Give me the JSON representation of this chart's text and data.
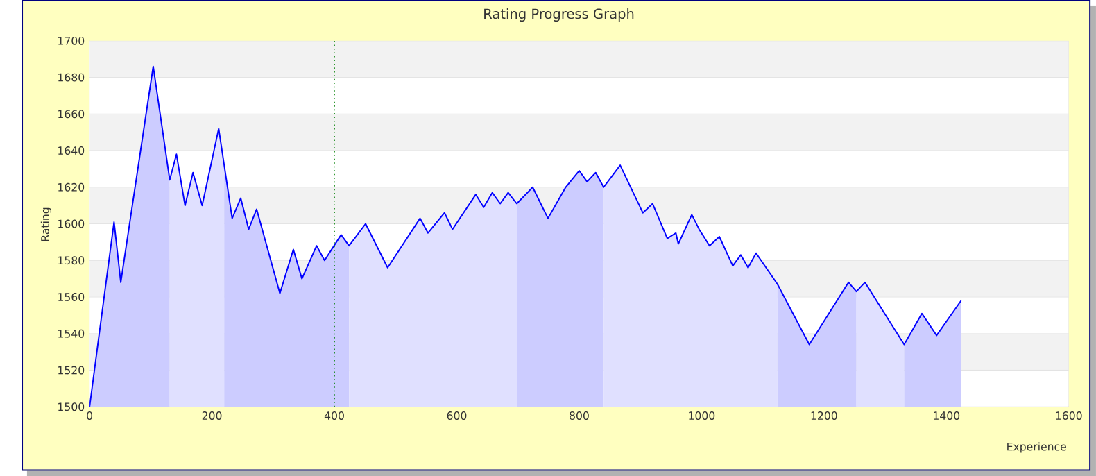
{
  "chart_data": {
    "type": "line",
    "title": "Rating Progress Graph",
    "xlabel": "Experience",
    "ylabel": "Rating",
    "xlim": [
      0,
      1600
    ],
    "ylim": [
      1500,
      1700
    ],
    "xticks": [
      0,
      200,
      400,
      600,
      800,
      1000,
      1200,
      1400,
      1600
    ],
    "yticks": [
      1500,
      1520,
      1540,
      1560,
      1580,
      1600,
      1620,
      1640,
      1660,
      1680,
      1700
    ],
    "grid": "y",
    "marker": "none",
    "line_style": "solid",
    "ref_lines": [
      {
        "axis": "x",
        "value": 400,
        "color": "#008000",
        "line_style": "dotted"
      }
    ],
    "series": [
      {
        "color": "#0000ff",
        "x": [
          0,
          40,
          51,
          104,
          131,
          142,
          156,
          169,
          184,
          211,
          220,
          233,
          247,
          260,
          273,
          311,
          333,
          347,
          371,
          384,
          411,
          424,
          451,
          487,
          540,
          553,
          580,
          593,
          631,
          644,
          658,
          671,
          684,
          698,
          724,
          749,
          778,
          800,
          813,
          827,
          840,
          867,
          904,
          920,
          944,
          958,
          962,
          984,
          996,
          1013,
          1029,
          1051,
          1064,
          1076,
          1089,
          1124,
          1176,
          1240,
          1253,
          1267,
          1331,
          1360,
          1384,
          1424
        ],
        "values": [
          1500,
          1601,
          1568,
          1686,
          1624,
          1638,
          1610,
          1628,
          1610,
          1652,
          1632,
          1603,
          1614,
          1597,
          1608,
          1562,
          1586,
          1570,
          1588,
          1580,
          1594,
          1588,
          1600,
          1576,
          1603,
          1595,
          1606,
          1597,
          1616,
          1609,
          1617,
          1611,
          1617,
          1611,
          1620,
          1603,
          1620,
          1629,
          1623,
          1628,
          1620,
          1632,
          1606,
          1611,
          1592,
          1595,
          1589,
          1605,
          1597,
          1588,
          1593,
          1577,
          1583,
          1576,
          1584,
          1567,
          1534,
          1568,
          1563,
          1568,
          1534,
          1551,
          1539,
          1558
        ]
      },
      {
        "type": "area",
        "color": "#ccccff",
        "x": [
          0,
          40,
          51,
          104,
          131
        ],
        "values": [
          1500,
          1601,
          1568,
          1686,
          1624
        ]
      },
      {
        "type": "area",
        "color": "#e0e0ff",
        "x": [
          131,
          142,
          156,
          169,
          184,
          211,
          220
        ],
        "values": [
          1624,
          1638,
          1610,
          1628,
          1610,
          1652,
          1632
        ]
      },
      {
        "type": "area",
        "color": "#ccccff",
        "x": [
          220,
          233,
          247,
          260,
          273,
          311,
          333,
          347,
          371,
          384,
          411,
          424
        ],
        "values": [
          1632,
          1603,
          1614,
          1597,
          1608,
          1562,
          1586,
          1570,
          1588,
          1580,
          1594,
          1588
        ]
      },
      {
        "type": "area",
        "color": "#e0e0ff",
        "x": [
          424,
          451,
          487,
          540,
          553,
          580,
          593,
          631,
          644,
          658,
          671,
          684,
          698
        ],
        "values": [
          1588,
          1600,
          1576,
          1603,
          1595,
          1606,
          1597,
          1616,
          1609,
          1617,
          1611,
          1617,
          1611
        ]
      },
      {
        "type": "area",
        "color": "#ccccff",
        "x": [
          698,
          724,
          749,
          778,
          800,
          813,
          827,
          840
        ],
        "values": [
          1611,
          1620,
          1603,
          1620,
          1629,
          1623,
          1628,
          1620
        ]
      },
      {
        "type": "area",
        "color": "#e0e0ff",
        "x": [
          840,
          867,
          904,
          920,
          944,
          958,
          962,
          984,
          996,
          1013,
          1029,
          1051,
          1064,
          1076,
          1089,
          1124
        ],
        "values": [
          1620,
          1632,
          1606,
          1611,
          1592,
          1595,
          1589,
          1605,
          1597,
          1588,
          1593,
          1577,
          1583,
          1576,
          1584,
          1567
        ]
      },
      {
        "type": "area",
        "color": "#ccccff",
        "x": [
          1124,
          1176,
          1240,
          1253
        ],
        "values": [
          1567,
          1534,
          1568,
          1563
        ]
      },
      {
        "type": "area",
        "color": "#e0e0ff",
        "x": [
          1253,
          1267,
          1331
        ],
        "values": [
          1563,
          1568,
          1534
        ]
      },
      {
        "type": "area",
        "color": "#ccccff",
        "x": [
          1331,
          1360,
          1384,
          1424
        ],
        "values": [
          1534,
          1551,
          1539,
          1558
        ]
      }
    ]
  }
}
